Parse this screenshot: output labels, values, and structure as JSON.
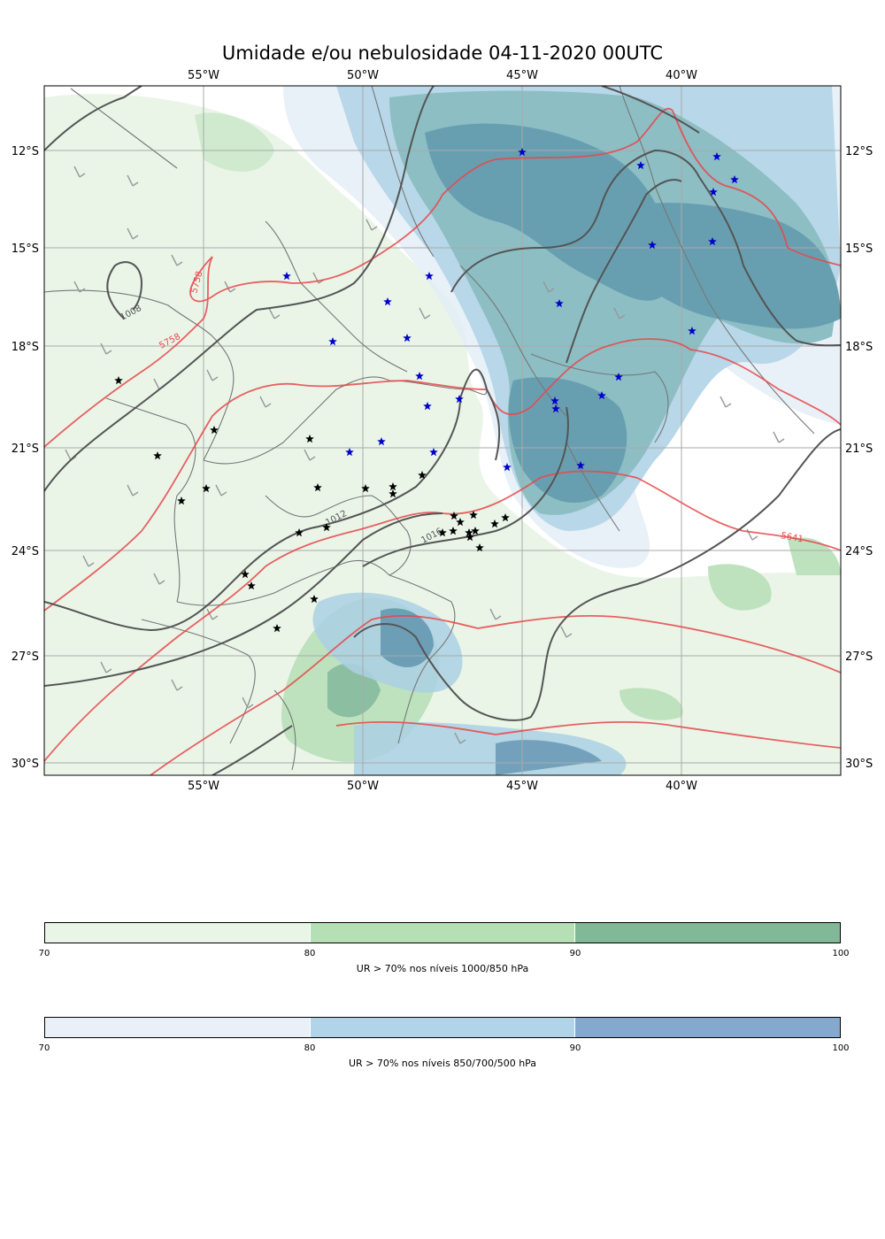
{
  "title": "Umidade e/ou nebulosidade 04-11-2020 00UTC",
  "map": {
    "lon_labels": [
      "55°W",
      "50°W",
      "45°W",
      "40°W"
    ],
    "lon_values": [
      -55,
      -50,
      -45,
      -40
    ],
    "lat_labels": [
      "12°S",
      "15°S",
      "18°S",
      "21°S",
      "24°S",
      "27°S",
      "30°S"
    ],
    "lat_values": [
      -12,
      -15,
      -18,
      -21,
      -24,
      -27,
      -30
    ],
    "extent": {
      "lon_min": -60,
      "lon_max": -35,
      "lat_min": -30.4,
      "lat_max": -10
    },
    "isobar_labels": [
      "1008",
      "1012",
      "1016"
    ],
    "geopotential_labels": [
      "5758",
      "5758",
      "5641"
    ],
    "colors": {
      "isobar": "#555555",
      "geopotential": "#e8474a",
      "low_humidity_70": "#e8f4e5",
      "low_humidity_80": "#b6dfb6",
      "low_humidity_90": "#80b898",
      "mid_humidity_70": "#e4eef7",
      "mid_humidity_80": "#acd1e4",
      "mid_humidity_90": "#5f93b5",
      "star_black": "#000000",
      "star_blue": "#0000cc"
    }
  },
  "colorbars": [
    {
      "label": "UR > 70% nos níveis 1000/850 hPa",
      "ticks": [
        "70",
        "80",
        "90",
        "100"
      ],
      "colors": [
        "#e9f5e6",
        "#b5dfb5",
        "#80b898"
      ]
    },
    {
      "label": "UR > 70% nos níveis 850/700/500 hPa",
      "ticks": [
        "70",
        "80",
        "90",
        "100"
      ],
      "colors": [
        "#e9f0f8",
        "#b1d4e8",
        "#85a8cf"
      ]
    }
  ]
}
